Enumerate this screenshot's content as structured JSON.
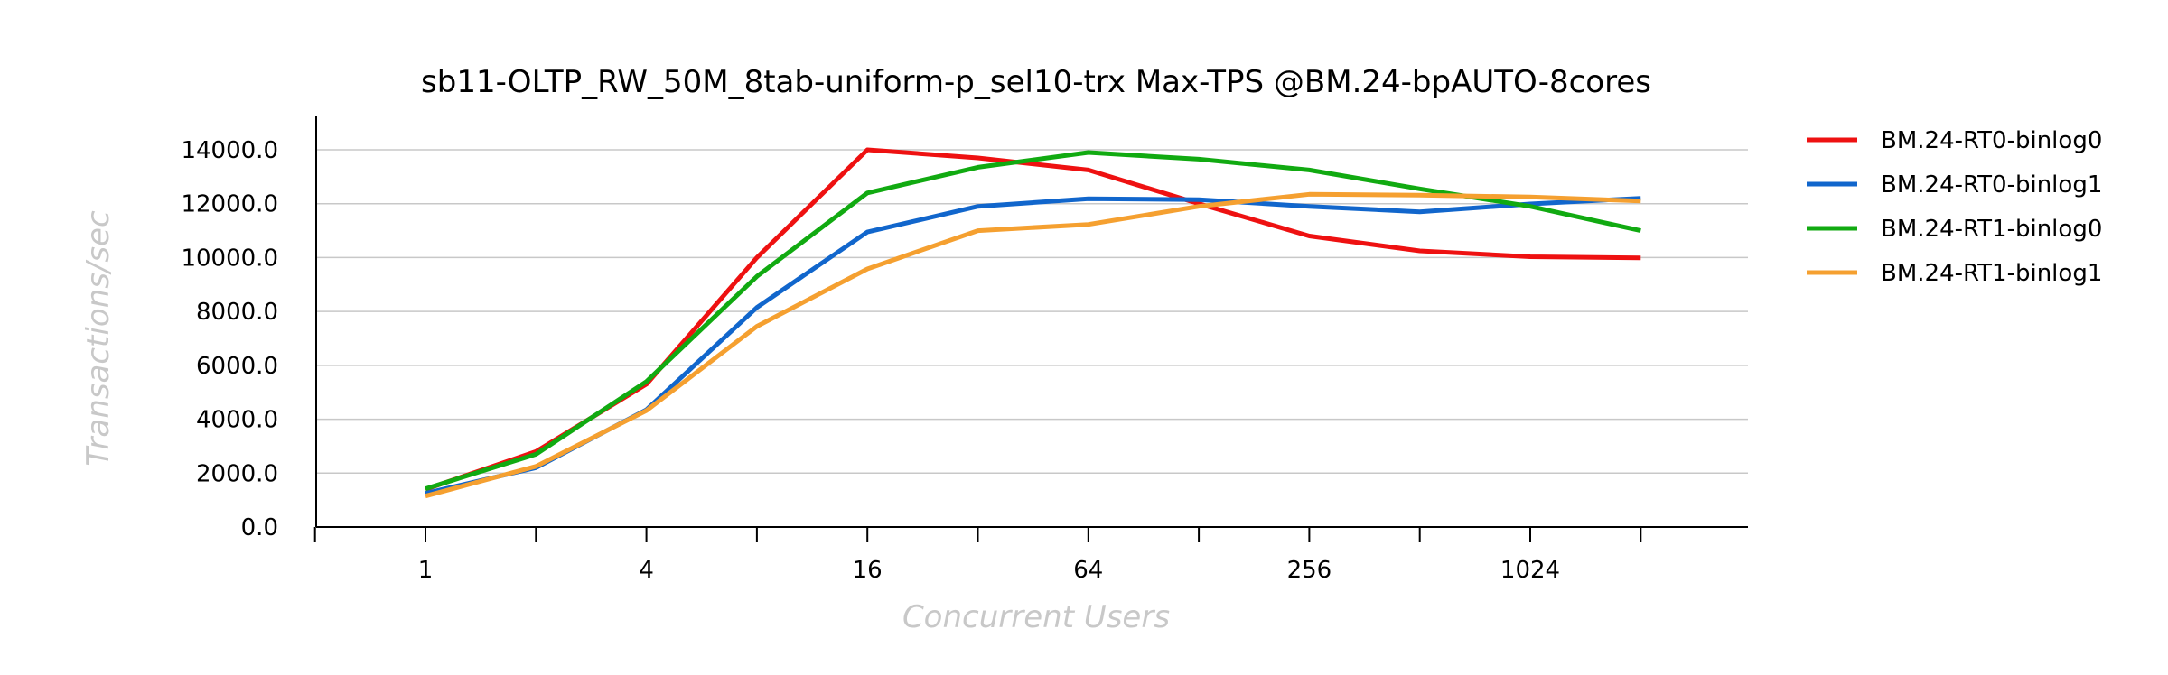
{
  "chart_data": {
    "type": "line",
    "title": "sb11-OLTP_RW_50M_8tab-uniform-p_sel10-trx Max-TPS @BM.24-bpAUTO-8cores",
    "xlabel": "Concurrent Users",
    "ylabel": "Transactions/sec",
    "x_scale": "log2",
    "x": [
      1,
      2,
      4,
      8,
      16,
      32,
      64,
      128,
      256,
      512,
      1024,
      2048
    ],
    "x_tick_values": [
      1,
      4,
      16,
      64,
      256,
      1024
    ],
    "x_tick_labels": [
      "1",
      "4",
      "16",
      "64",
      "256",
      "1024"
    ],
    "ylim": [
      0,
      14000
    ],
    "y_ticks": [
      0,
      2000,
      4000,
      6000,
      8000,
      10000,
      12000,
      14000
    ],
    "y_tick_labels": [
      "0.0",
      "2000.0",
      "4000.0",
      "6000.0",
      "8000.0",
      "10000.0",
      "12000.0",
      "14000.0"
    ],
    "grid": true,
    "legend_position": "right",
    "series": [
      {
        "name": "BM.24-RT0-binlog0",
        "color": "#ee1111",
        "values": [
          1400,
          2800,
          5300,
          10000,
          14000,
          13700,
          13250,
          12000,
          10800,
          10250,
          10030,
          9990
        ]
      },
      {
        "name": "BM.24-RT0-binlog1",
        "color": "#1166cc",
        "values": [
          1250,
          2200,
          4350,
          8150,
          10950,
          11900,
          12180,
          12150,
          11900,
          11700,
          11990,
          12200
        ]
      },
      {
        "name": "BM.24-RT1-binlog0",
        "color": "#11aa11",
        "values": [
          1420,
          2700,
          5400,
          9300,
          12400,
          13350,
          13900,
          13650,
          13250,
          12550,
          11900,
          11000
        ]
      },
      {
        "name": "BM.24-RT1-binlog1",
        "color": "#f5a030",
        "values": [
          1150,
          2250,
          4320,
          7450,
          9580,
          11000,
          11230,
          11900,
          12350,
          12320,
          12250,
          12100
        ]
      }
    ]
  }
}
